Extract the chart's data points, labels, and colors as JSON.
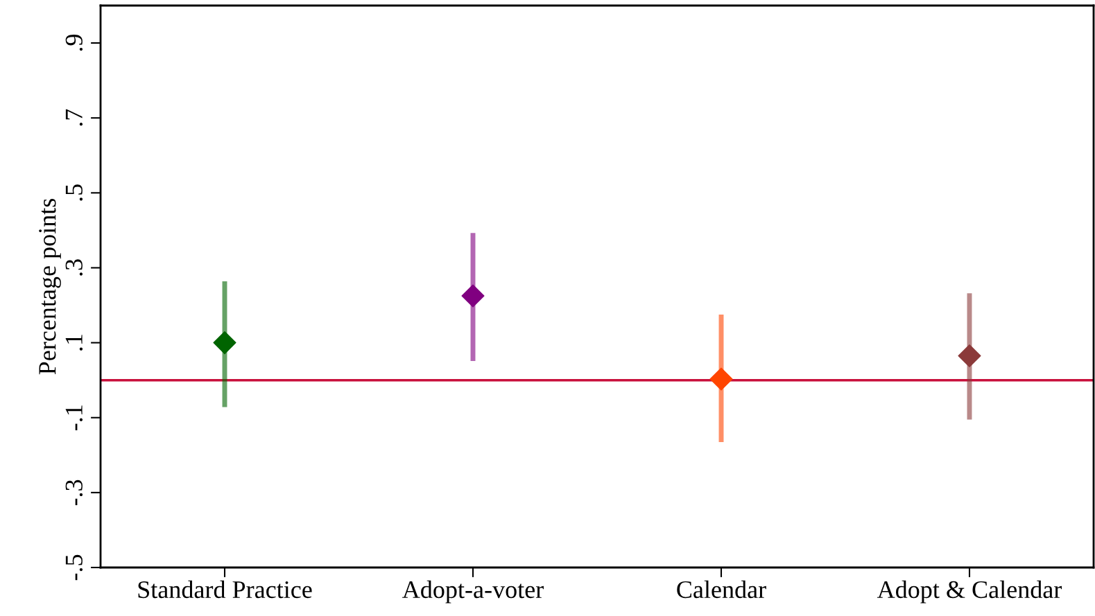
{
  "chart_data": {
    "type": "scatter",
    "ylabel": "Percentage points",
    "categories": [
      "Standard Practice",
      "Adopt-a-voter",
      "Calendar",
      "Adopt & Calendar"
    ],
    "values": [
      0.1,
      0.225,
      0.003,
      0.065
    ],
    "errors": [
      [
        -0.072,
        0.264
      ],
      [
        0.051,
        0.393
      ],
      [
        -0.165,
        0.175
      ],
      [
        -0.105,
        0.232
      ]
    ],
    "colors": [
      "#006400",
      "#800080",
      "#ff4500",
      "#8b3a3a"
    ],
    "marker": "diamond",
    "ylim": [
      -0.5,
      1.0
    ],
    "yticks": [
      {
        "value": -0.5,
        "label": "-.5"
      },
      {
        "value": -0.3,
        "label": "-.3"
      },
      {
        "value": -0.1,
        "label": "-.1"
      },
      {
        "value": 0.1,
        "label": ".1"
      },
      {
        "value": 0.3,
        "label": ".3"
      },
      {
        "value": 0.5,
        "label": ".5"
      },
      {
        "value": 0.7,
        "label": ".7"
      },
      {
        "value": 0.9,
        "label": ".9"
      }
    ],
    "ref_lines": [
      {
        "axis": "y",
        "value": 0,
        "color": "#c8103c"
      }
    ],
    "grid": false,
    "legend": false
  }
}
